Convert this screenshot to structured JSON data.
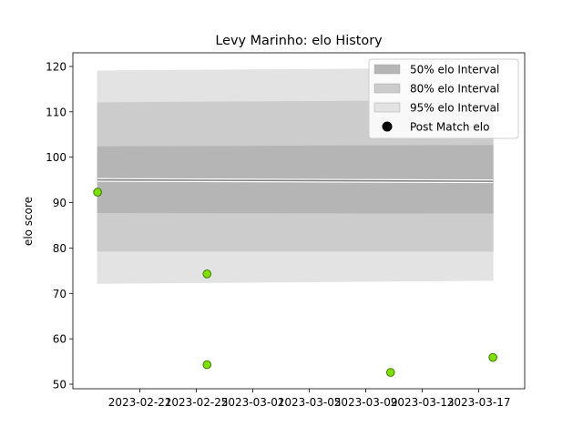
{
  "chart_data": {
    "type": "area",
    "title": "Levy Marinho: elo History",
    "xlabel": "",
    "ylabel": "elo score",
    "x_ticks": [
      "2023-02-21",
      "2023-02-25",
      "2023-03-01",
      "2023-03-05",
      "2023-03-09",
      "2023-03-13",
      "2023-03-17"
    ],
    "y_ticks": [
      "50",
      "60",
      "70",
      "80",
      "90",
      "100",
      "110",
      "120"
    ],
    "xlim": [
      "2023-02-16T06:00",
      "2023-03-20T06:00"
    ],
    "ylim": [
      49,
      123
    ],
    "grid": false,
    "legend_position": "top-right",
    "band_dates": [
      "2023-02-18",
      "2023-03-18"
    ],
    "mean_line": [
      95.0,
      94.7
    ],
    "intervals": [
      {
        "name": "95% elo Interval",
        "upper": [
          119.0,
          119.6
        ],
        "lower": [
          72.2,
          72.9
        ],
        "color": "#e3e3e3"
      },
      {
        "name": "80% elo Interval",
        "upper": [
          112.0,
          112.5
        ],
        "lower": [
          79.3,
          79.3
        ],
        "color": "#cccccc"
      },
      {
        "name": "50% elo Interval",
        "upper": [
          102.3,
          102.6
        ],
        "lower": [
          87.8,
          87.7
        ],
        "color": "#b5b5b5"
      }
    ],
    "post_match": {
      "name": "Post Match elo",
      "color": "#7fe000",
      "points": [
        {
          "x": "2023-02-18",
          "y": 92.3
        },
        {
          "x": "2023-02-25T18:00",
          "y": 74.3
        },
        {
          "x": "2023-02-25T18:00",
          "y": 54.3
        },
        {
          "x": "2023-03-10T18:00",
          "y": 52.6
        },
        {
          "x": "2023-03-18",
          "y": 55.9
        }
      ]
    },
    "legend": [
      "50% elo Interval",
      "80% elo Interval",
      "95% elo Interval",
      "Post Match elo"
    ]
  }
}
